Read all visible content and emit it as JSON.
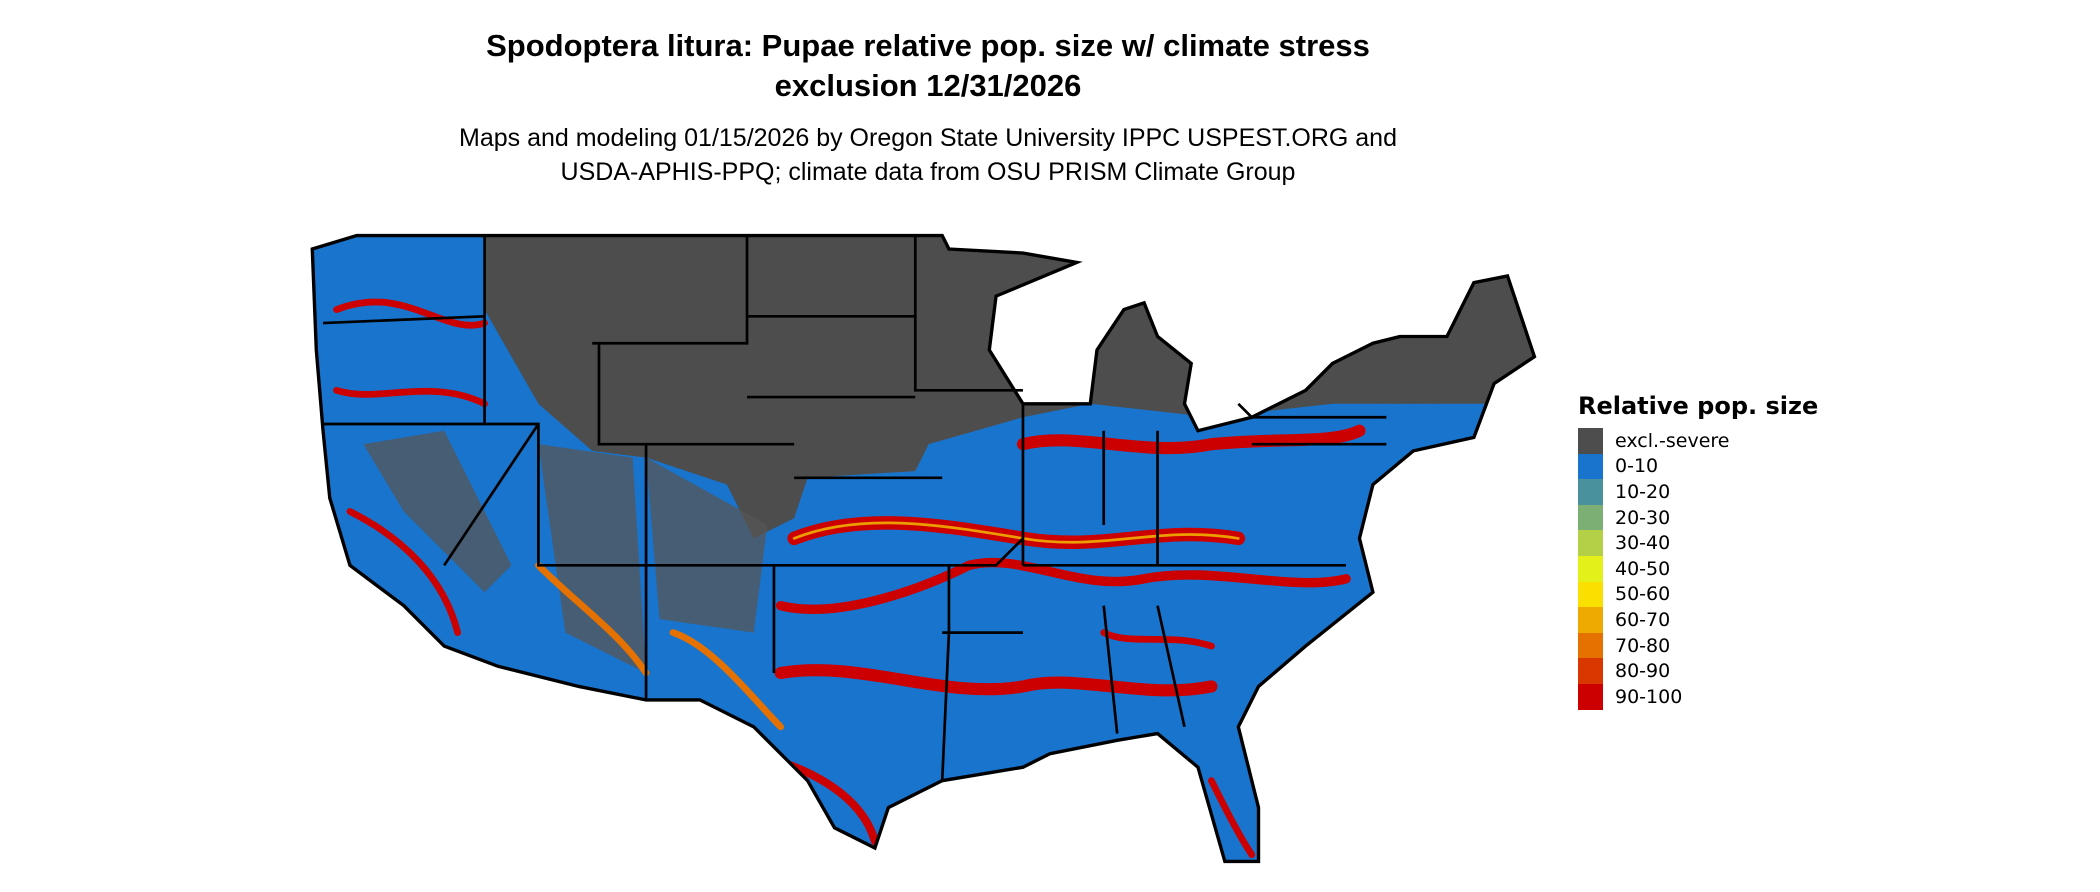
{
  "header": {
    "title_line1": "Spodoptera litura: Pupae relative pop. size w/ climate stress",
    "title_line2": "exclusion 12/31/2026",
    "subtitle_line1": "Maps and modeling 01/15/2026 by Oregon State University IPPC USPEST.ORG and",
    "subtitle_line2": "USDA-APHIS-PPQ; climate data from OSU PRISM Climate Group"
  },
  "legend": {
    "title": "Relative pop. size",
    "items": [
      {
        "label": "excl.-severe",
        "color": "#4d4d4d"
      },
      {
        "label": "0-10",
        "color": "#1874cd"
      },
      {
        "label": "10-20",
        "color": "#48919d"
      },
      {
        "label": "20-30",
        "color": "#7caf74"
      },
      {
        "label": "30-40",
        "color": "#b3d046"
      },
      {
        "label": "40-50",
        "color": "#e3f01a"
      },
      {
        "label": "50-60",
        "color": "#f9e000"
      },
      {
        "label": "60-70",
        "color": "#eeaa00"
      },
      {
        "label": "70-80",
        "color": "#e57200"
      },
      {
        "label": "80-90",
        "color": "#d83800"
      },
      {
        "label": "90-100",
        "color": "#cc0000"
      }
    ]
  }
}
